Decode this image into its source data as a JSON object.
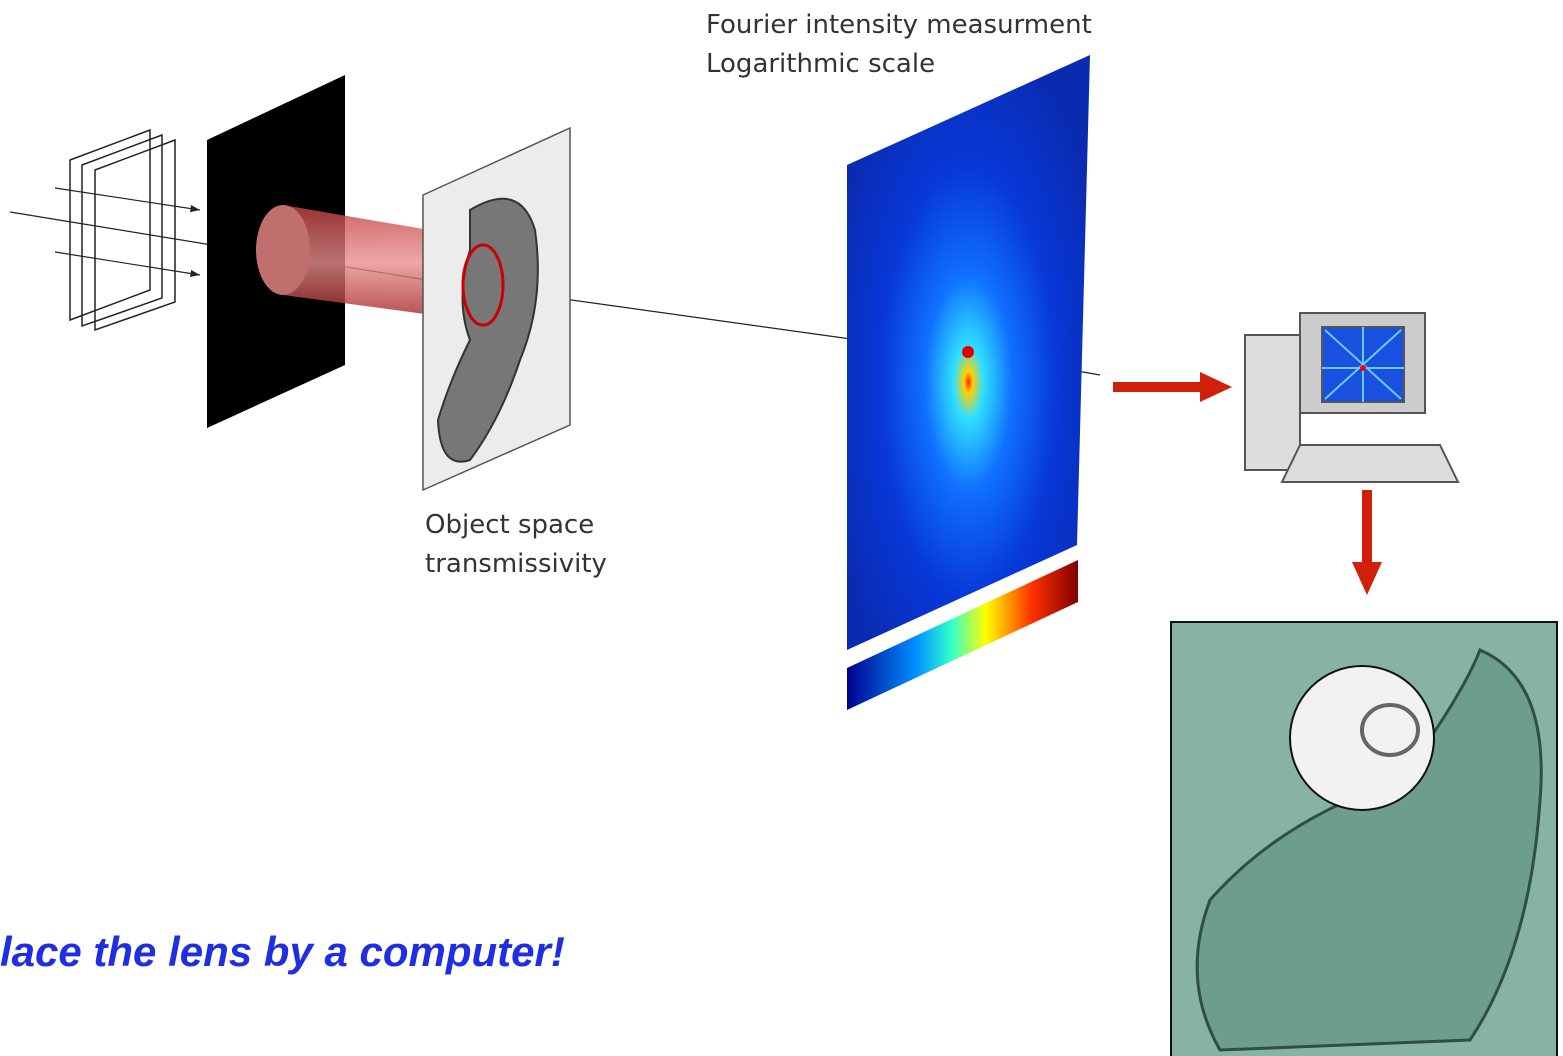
{
  "fourier_label": {
    "line1": "Fourier intensity measurment",
    "line2": "Logarithmic scale"
  },
  "object_label": {
    "line1": "Object space",
    "line2": "transmissivity"
  },
  "caption": "lace the lens by a computer!"
}
